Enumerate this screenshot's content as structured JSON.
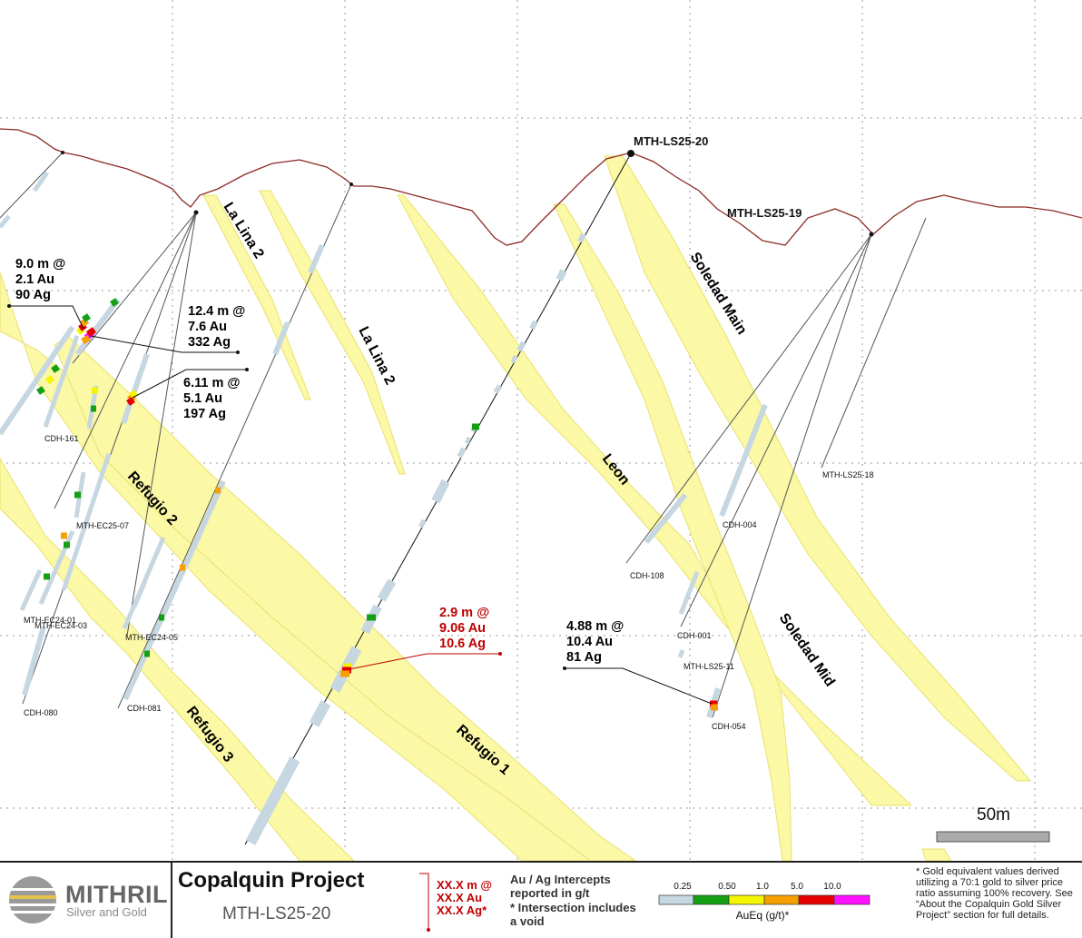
{
  "project": {
    "title": "Copalquin Project",
    "hole": "MTH-LS25-20"
  },
  "logo": {
    "name": "MITHRIL",
    "tagline": "Silver and Gold"
  },
  "legend": {
    "intercept_template": [
      "XX.X m @",
      "XX.X Au",
      "XX.X Ag*"
    ],
    "intercept_note": "Au / Ag Intercepts reported in g/t",
    "void_note": "* Intersection includes a void",
    "scale_ticks": [
      "0.25",
      "0.50",
      "1.0",
      "5.0",
      "10.0"
    ],
    "scale_colors": [
      "#c6d7e2",
      "#14a014",
      "#f5f500",
      "#f5a000",
      "#e60000",
      "#ff10ff"
    ],
    "scale_title": "AuEq (g/t)*"
  },
  "note": "* Gold equivalent values derived utilizing a 70:1 gold to silver price ratio assuming 100% recovery. See “About the Copalquin Gold Silver Project” section for full details.",
  "scale_bar": "50m",
  "veins": [
    "La Lina 2",
    "La Lina 2",
    "Soledad Main",
    "Leon",
    "Soledad Mid",
    "Refugio 2",
    "Refugio 3",
    "Refugio 1"
  ],
  "holes": [
    "MTH-LS25-20",
    "MTH-LS25-19",
    "MTH-LS25-18",
    "CDH-161",
    "MTH-EC25-07",
    "MTH-EC24-01",
    "MTH-EC24-03",
    "MTH-EC24-05",
    "CDH-080",
    "CDH-081",
    "CDH-108",
    "CDH-004",
    "CDH-001",
    "MTH-LS25-11",
    "CDH-054"
  ],
  "intercepts": [
    {
      "lines": [
        "9.0 m @",
        "2.1 Au",
        "90 Ag"
      ]
    },
    {
      "lines": [
        "12.4 m @",
        "7.6 Au",
        "332 Ag"
      ]
    },
    {
      "lines": [
        "6.11 m @",
        "5.1 Au",
        "197 Ag"
      ]
    },
    {
      "lines": [
        "2.9 m @",
        "9.06 Au",
        "10.6 Ag"
      ],
      "highlight": true
    },
    {
      "lines": [
        "4.88 m @",
        "10.4 Au",
        "81 Ag"
      ]
    }
  ]
}
